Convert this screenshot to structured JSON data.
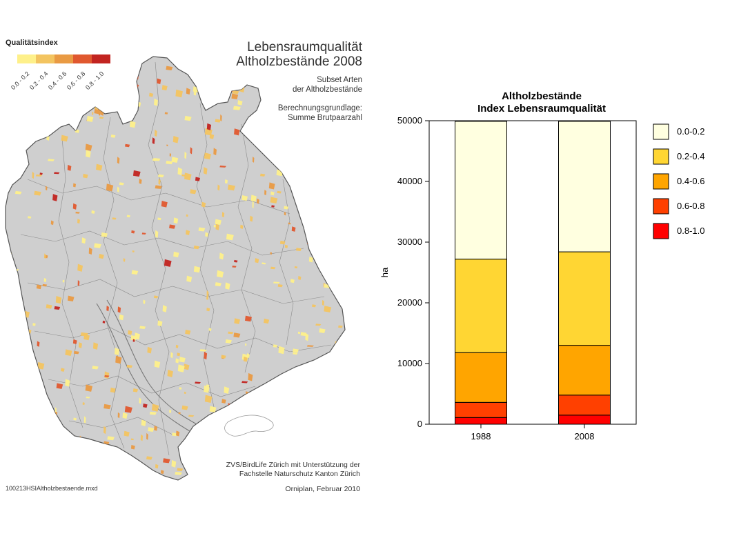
{
  "map": {
    "title_line1": "Lebensraumqualität",
    "title_line2": "Altholzbestände 2008",
    "subset_line1": "Subset Arten",
    "subset_line2": "der Altholzbestände",
    "basis_line1": "Berechnungsgrundlage:",
    "basis_line2": "Summe Brutpaarzahl",
    "credit_line1": "ZVS/BirdLife Zürich mit Unterstützung der",
    "credit_line2": "Fachstelle Naturschutz Kanton Zürich",
    "date": "Orniplan, Februar 2010",
    "filename": "100213HSIAltholzbestaende.mxd",
    "legend": {
      "title": "Qualitätsindex",
      "classes": [
        {
          "label": "0.0 - 0.2",
          "color": "#fef08a"
        },
        {
          "label": "0.2 - 0.4",
          "color": "#f3c460"
        },
        {
          "label": "0.4 - 0.6",
          "color": "#e99a43"
        },
        {
          "label": "0.6 - 0.8",
          "color": "#e0582f"
        },
        {
          "label": "0.8 - 1.0",
          "color": "#c22420"
        }
      ]
    },
    "base_color": "#cfcfcf"
  },
  "chart_data": {
    "type": "bar",
    "stacked": true,
    "title": "Altholzbestände",
    "subtitle": "Index Lebensraumqualität",
    "ylabel": "ha",
    "xlabel": "",
    "categories": [
      "1988",
      "2008"
    ],
    "ylim": [
      0,
      50000
    ],
    "yticks": [
      0,
      10000,
      20000,
      30000,
      40000,
      50000
    ],
    "legend_position": "right",
    "series": [
      {
        "name": "0.8-1.0",
        "color": "#ff0000",
        "values": [
          1100,
          1500
        ]
      },
      {
        "name": "0.6-0.8",
        "color": "#ff4000",
        "values": [
          2500,
          3300
        ]
      },
      {
        "name": "0.4-0.6",
        "color": "#ffa500",
        "values": [
          8200,
          8200
        ]
      },
      {
        "name": "0.2-0.4",
        "color": "#ffd633",
        "values": [
          15400,
          15400
        ]
      },
      {
        "name": "0.0-0.2",
        "color": "#ffffe0",
        "values": [
          22700,
          21500
        ]
      }
    ],
    "legend_order": [
      "0.0-0.2",
      "0.2-0.4",
      "0.4-0.6",
      "0.6-0.8",
      "0.8-1.0"
    ]
  }
}
